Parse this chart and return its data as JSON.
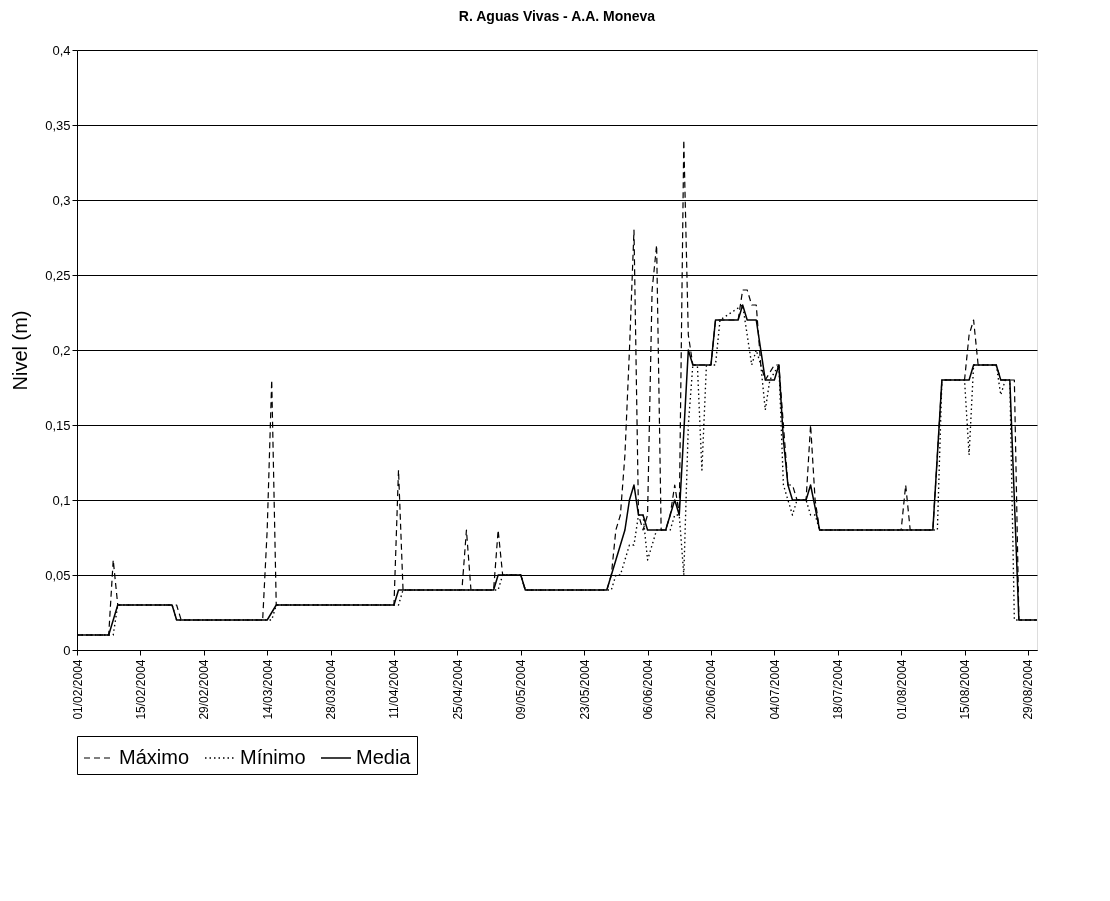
{
  "chart_data": {
    "type": "line",
    "title": "R. Aguas Vivas - A.A. Moneva",
    "ylabel": "Nivel (m)",
    "xlim": [
      "2004-02-01",
      "2004-08-31"
    ],
    "xticks": [
      {
        "value": "2004-02-01",
        "label": "01/02/2004"
      },
      {
        "value": "2004-02-15",
        "label": "15/02/2004"
      },
      {
        "value": "2004-02-29",
        "label": "29/02/2004"
      },
      {
        "value": "2004-03-14",
        "label": "14/03/2004"
      },
      {
        "value": "2004-03-28",
        "label": "28/03/2004"
      },
      {
        "value": "2004-04-11",
        "label": "11/04/2004"
      },
      {
        "value": "2004-04-25",
        "label": "25/04/2004"
      },
      {
        "value": "2004-05-09",
        "label": "09/05/2004"
      },
      {
        "value": "2004-05-23",
        "label": "23/05/2004"
      },
      {
        "value": "2004-06-06",
        "label": "06/06/2004"
      },
      {
        "value": "2004-06-20",
        "label": "20/06/2004"
      },
      {
        "value": "2004-07-04",
        "label": "04/07/2004"
      },
      {
        "value": "2004-07-18",
        "label": "18/07/2004"
      },
      {
        "value": "2004-08-01",
        "label": "01/08/2004"
      },
      {
        "value": "2004-08-15",
        "label": "15/08/2004"
      },
      {
        "value": "2004-08-29",
        "label": "29/08/2004"
      }
    ],
    "ylim": [
      0,
      0.4
    ],
    "yticks": [
      {
        "value": 0,
        "label": "0"
      },
      {
        "value": 0.05,
        "label": "0,05"
      },
      {
        "value": 0.1,
        "label": "0,1"
      },
      {
        "value": 0.15,
        "label": "0,15"
      },
      {
        "value": 0.2,
        "label": "0,2"
      },
      {
        "value": 0.25,
        "label": "0,25"
      },
      {
        "value": 0.3,
        "label": "0,3"
      },
      {
        "value": 0.35,
        "label": "0,35"
      },
      {
        "value": 0.4,
        "label": "0,4"
      }
    ],
    "grid": "y",
    "legend": "bottom",
    "marker": "none",
    "series": [
      {
        "name": "Máximo",
        "color": "#000000",
        "line_style": "dashed",
        "x": [
          "2004-02-01",
          "2004-02-08",
          "2004-02-09",
          "2004-02-10",
          "2004-02-23",
          "2004-02-24",
          "2004-03-13",
          "2004-03-14",
          "2004-03-15",
          "2004-03-16",
          "2004-04-11",
          "2004-04-12",
          "2004-04-13",
          "2004-04-26",
          "2004-04-27",
          "2004-04-28",
          "2004-05-03",
          "2004-05-04",
          "2004-05-05",
          "2004-05-09",
          "2004-05-10",
          "2004-05-28",
          "2004-05-29",
          "2004-05-30",
          "2004-05-31",
          "2004-06-01",
          "2004-06-02",
          "2004-06-03",
          "2004-06-04",
          "2004-06-05",
          "2004-06-06",
          "2004-06-07",
          "2004-06-08",
          "2004-06-09",
          "2004-06-10",
          "2004-06-11",
          "2004-06-12",
          "2004-06-13",
          "2004-06-14",
          "2004-06-15",
          "2004-06-16",
          "2004-06-20",
          "2004-06-21",
          "2004-06-26",
          "2004-06-27",
          "2004-06-28",
          "2004-06-29",
          "2004-06-30",
          "2004-07-01",
          "2004-07-02",
          "2004-07-04",
          "2004-07-05",
          "2004-07-06",
          "2004-07-07",
          "2004-07-08",
          "2004-07-09",
          "2004-07-11",
          "2004-07-12",
          "2004-07-13",
          "2004-07-14",
          "2004-08-01",
          "2004-08-02",
          "2004-08-03",
          "2004-08-08",
          "2004-08-10",
          "2004-08-15",
          "2004-08-16",
          "2004-08-17",
          "2004-08-18",
          "2004-08-22",
          "2004-08-23",
          "2004-08-26",
          "2004-08-27",
          "2004-08-31"
        ],
        "values": [
          0.01,
          0.01,
          0.06,
          0.03,
          0.03,
          0.02,
          0.02,
          0.08,
          0.18,
          0.03,
          0.03,
          0.12,
          0.04,
          0.04,
          0.08,
          0.04,
          0.04,
          0.08,
          0.05,
          0.05,
          0.04,
          0.04,
          0.05,
          0.08,
          0.09,
          0.13,
          0.2,
          0.28,
          0.09,
          0.08,
          0.09,
          0.24,
          0.27,
          0.08,
          0.08,
          0.09,
          0.11,
          0.09,
          0.34,
          0.21,
          0.19,
          0.19,
          0.22,
          0.22,
          0.24,
          0.24,
          0.23,
          0.23,
          0.19,
          0.18,
          0.19,
          0.19,
          0.15,
          0.11,
          0.11,
          0.1,
          0.1,
          0.15,
          0.1,
          0.08,
          0.08,
          0.11,
          0.08,
          0.08,
          0.18,
          0.18,
          0.21,
          0.22,
          0.19,
          0.19,
          0.18,
          0.18,
          0.02,
          0.02
        ]
      },
      {
        "name": "Mínimo",
        "color": "#000000",
        "line_style": "dotted",
        "x": [
          "2004-02-01",
          "2004-02-09",
          "2004-02-10",
          "2004-02-22",
          "2004-02-23",
          "2004-03-15",
          "2004-03-16",
          "2004-04-12",
          "2004-04-13",
          "2004-05-04",
          "2004-05-05",
          "2004-05-09",
          "2004-05-10",
          "2004-05-29",
          "2004-05-30",
          "2004-05-31",
          "2004-06-01",
          "2004-06-02",
          "2004-06-03",
          "2004-06-04",
          "2004-06-05",
          "2004-06-06",
          "2004-06-07",
          "2004-06-08",
          "2004-06-11",
          "2004-06-12",
          "2004-06-13",
          "2004-06-14",
          "2004-06-15",
          "2004-06-16",
          "2004-06-17",
          "2004-06-18",
          "2004-06-19",
          "2004-06-21",
          "2004-06-22",
          "2004-06-27",
          "2004-06-28",
          "2004-06-29",
          "2004-06-30",
          "2004-07-01",
          "2004-07-02",
          "2004-07-03",
          "2004-07-05",
          "2004-07-06",
          "2004-07-07",
          "2004-07-08",
          "2004-07-09",
          "2004-07-11",
          "2004-07-12",
          "2004-07-13",
          "2004-07-14",
          "2004-08-09",
          "2004-08-10",
          "2004-08-15",
          "2004-08-16",
          "2004-08-17",
          "2004-08-22",
          "2004-08-23",
          "2004-08-24",
          "2004-08-25",
          "2004-08-26",
          "2004-08-31"
        ],
        "values": [
          0.01,
          0.01,
          0.03,
          0.03,
          0.02,
          0.02,
          0.03,
          0.03,
          0.04,
          0.04,
          0.05,
          0.05,
          0.04,
          0.04,
          0.05,
          0.05,
          0.06,
          0.07,
          0.07,
          0.09,
          0.09,
          0.06,
          0.07,
          0.08,
          0.08,
          0.09,
          0.09,
          0.05,
          0.15,
          0.19,
          0.19,
          0.12,
          0.19,
          0.19,
          0.22,
          0.23,
          0.21,
          0.19,
          0.2,
          0.19,
          0.16,
          0.18,
          0.19,
          0.11,
          0.1,
          0.09,
          0.1,
          0.1,
          0.09,
          0.09,
          0.08,
          0.08,
          0.18,
          0.18,
          0.13,
          0.19,
          0.19,
          0.17,
          0.18,
          0.18,
          0.02,
          0.02
        ]
      },
      {
        "name": "Media",
        "color": "#000000",
        "line_style": "solid",
        "x": [
          "2004-02-01",
          "2004-02-08",
          "2004-02-10",
          "2004-02-22",
          "2004-02-23",
          "2004-03-14",
          "2004-03-16",
          "2004-04-11",
          "2004-04-12",
          "2004-05-03",
          "2004-05-04",
          "2004-05-09",
          "2004-05-10",
          "2004-05-28",
          "2004-05-29",
          "2004-05-30",
          "2004-05-31",
          "2004-06-01",
          "2004-06-02",
          "2004-06-03",
          "2004-06-04",
          "2004-06-05",
          "2004-06-06",
          "2004-06-10",
          "2004-06-11",
          "2004-06-12",
          "2004-06-13",
          "2004-06-15",
          "2004-06-16",
          "2004-06-20",
          "2004-06-21",
          "2004-06-26",
          "2004-06-27",
          "2004-06-28",
          "2004-06-30",
          "2004-07-02",
          "2004-07-04",
          "2004-07-05",
          "2004-07-06",
          "2004-07-07",
          "2004-07-08",
          "2004-07-11",
          "2004-07-12",
          "2004-07-14",
          "2004-08-08",
          "2004-08-10",
          "2004-08-16",
          "2004-08-17",
          "2004-08-22",
          "2004-08-23",
          "2004-08-25",
          "2004-08-27",
          "2004-08-31"
        ],
        "values": [
          0.01,
          0.01,
          0.03,
          0.03,
          0.02,
          0.02,
          0.03,
          0.03,
          0.04,
          0.04,
          0.05,
          0.05,
          0.04,
          0.04,
          0.05,
          0.06,
          0.07,
          0.08,
          0.1,
          0.11,
          0.09,
          0.09,
          0.08,
          0.08,
          0.09,
          0.1,
          0.09,
          0.2,
          0.19,
          0.19,
          0.22,
          0.22,
          0.23,
          0.22,
          0.22,
          0.18,
          0.18,
          0.19,
          0.14,
          0.11,
          0.1,
          0.1,
          0.11,
          0.08,
          0.08,
          0.18,
          0.18,
          0.19,
          0.19,
          0.18,
          0.18,
          0.02,
          0.02
        ]
      }
    ]
  }
}
